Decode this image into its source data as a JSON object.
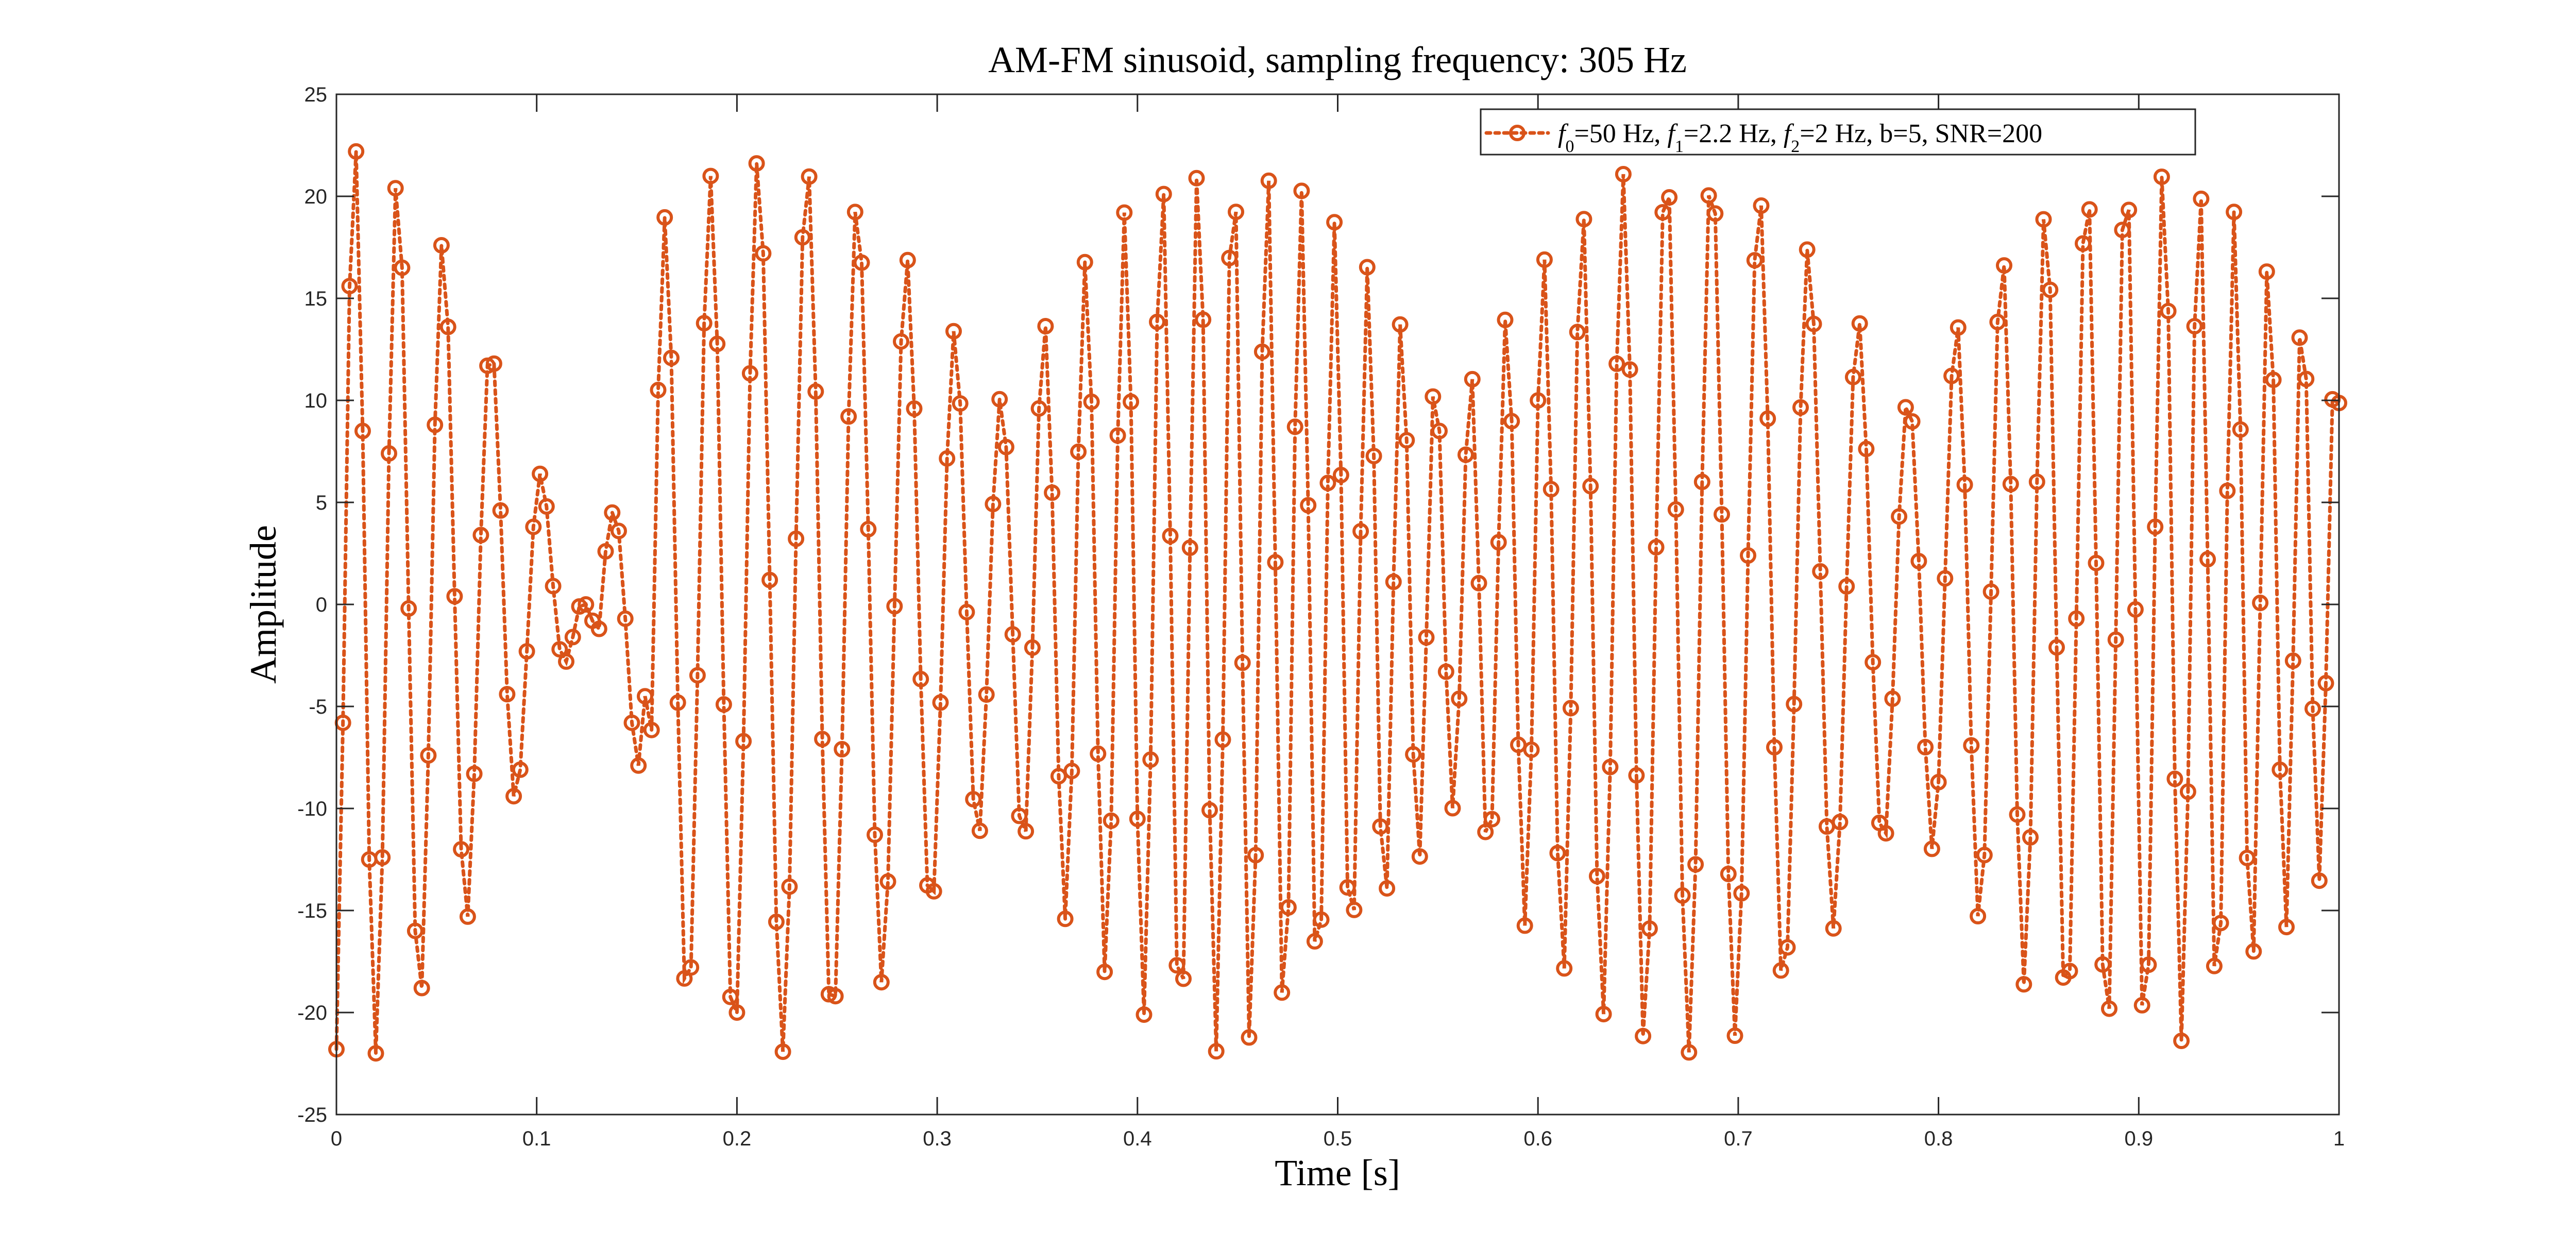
{
  "chart_data": {
    "type": "line",
    "title": "AM-FM sinusoid, sampling frequency: 305 Hz",
    "xlabel": "Time [s]",
    "ylabel": "Amplitude",
    "xlim": [
      0,
      1
    ],
    "ylim": [
      -25,
      25
    ],
    "x_ticks": [
      0,
      0.1,
      0.2,
      0.3,
      0.4,
      0.5,
      0.6,
      0.7,
      0.8,
      0.9,
      1
    ],
    "y_ticks": [
      -25,
      -20,
      -15,
      -10,
      -5,
      0,
      5,
      10,
      15,
      20,
      25
    ],
    "x_tick_labels": [
      "0",
      "0.1",
      "0.2",
      "0.3",
      "0.4",
      "0.5",
      "0.6",
      "0.7",
      "0.8",
      "0.9",
      "1"
    ],
    "y_tick_labels": [
      "-25",
      "-20",
      "-15",
      "-10",
      "-5",
      "0",
      "5",
      "10",
      "15",
      "20",
      "25"
    ],
    "grid": false,
    "legend_position": "top-right",
    "series": [
      {
        "name": "f0=50 Hz, f1=2.2 Hz, f2=2 Hz, b=5, SNR=200",
        "legend_parts": [
          "f",
          "0",
          "=50 Hz, ",
          "f",
          "1",
          "=2.2 Hz, ",
          "f",
          "2",
          "=2 Hz, b=5, SNR=200"
        ],
        "color": "#d95319",
        "line_style": "dotted",
        "marker": "circle",
        "sampling_frequency_hz": 305,
        "f0_hz": 50,
        "f1_hz": 2.2,
        "f2_hz": 2,
        "modulation_index_b": 5,
        "snr": 200,
        "sample_count": 306,
        "x_start": 0,
        "x_end": 1,
        "sample_y": [
          -21.8,
          -5.8,
          15.6,
          22.2,
          8.5,
          -12.5,
          -22.0,
          -12.4,
          7.4,
          20.4,
          16.5,
          -0.2,
          -16.0,
          -18.8,
          -7.4,
          8.8,
          17.6,
          13.6,
          0.4,
          -12.0,
          -15.3,
          -8.3,
          3.4,
          11.7,
          11.8,
          4.6,
          -4.4,
          -9.4,
          -8.1,
          -2.3,
          3.8,
          6.4,
          4.8,
          0.9,
          -2.2,
          -2.8,
          -1.6,
          -0.1,
          0.0,
          -0.8,
          -1.2,
          2.6,
          4.5,
          3.6,
          -0.7,
          -5.8,
          -7.9,
          -4.5
        ]
      }
    ]
  }
}
